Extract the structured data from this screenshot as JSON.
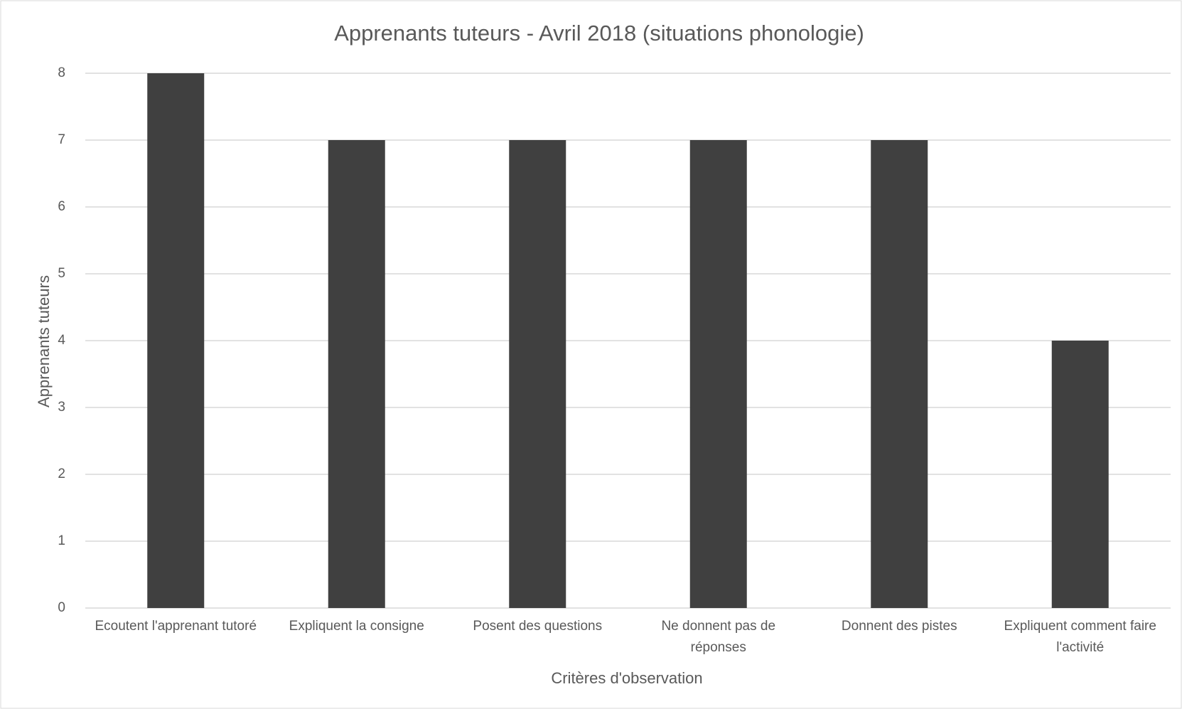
{
  "chart_data": {
    "type": "bar",
    "title": "Apprenants tuteurs - Avril 2018 (situations phonologie)",
    "categories": [
      "Ecoutent l'apprenant tutoré",
      "Expliquent la consigne",
      "Posent des questions",
      "Ne donnent pas de réponses",
      "Donnent des pistes",
      "Expliquent comment faire l'activité"
    ],
    "values": [
      8,
      7,
      7,
      7,
      7,
      4
    ],
    "color": "#404040",
    "x_label": "Critères d'observation",
    "y_label": "Apprenants tuteurs",
    "ylim": [
      0,
      8
    ],
    "yticks": [
      0,
      1,
      2,
      3,
      4,
      5,
      6,
      7,
      8
    ],
    "grid": true
  }
}
